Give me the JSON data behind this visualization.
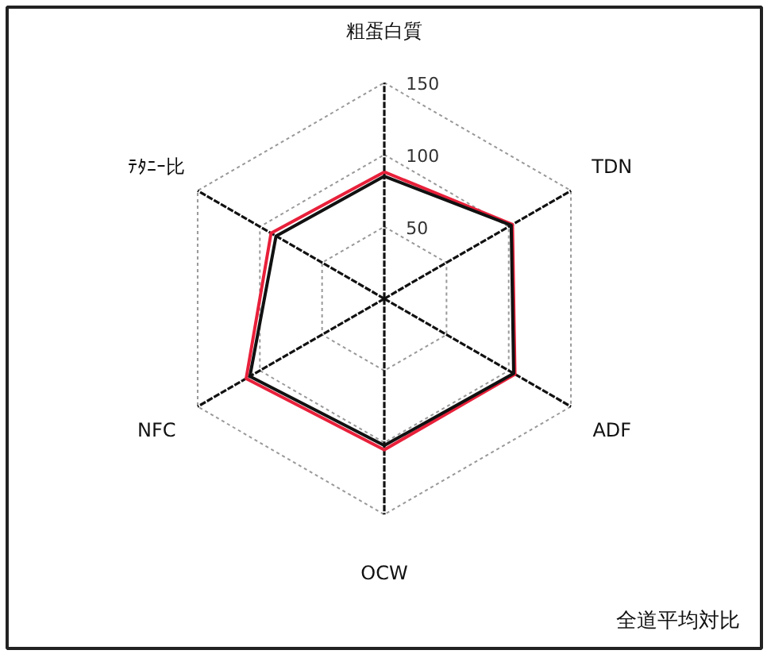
{
  "chart_data": {
    "type": "radar",
    "categories": [
      "粗蛋白質",
      "TDN",
      "ADF",
      "OCW",
      "NFC",
      "ﾃﾀﾆｰ比"
    ],
    "series": [
      {
        "color": "#e8203a",
        "values": [
          88,
          103,
          105,
          105,
          111,
          91
        ]
      },
      {
        "color": "#111111",
        "values": [
          85,
          102,
          104,
          102,
          108,
          87
        ]
      }
    ],
    "ylim": [
      0,
      150
    ],
    "yticks": [
      50,
      100,
      150
    ],
    "grid": true,
    "marker": "none",
    "line_style": "solid",
    "annotations": [
      "全道平均対比"
    ]
  }
}
